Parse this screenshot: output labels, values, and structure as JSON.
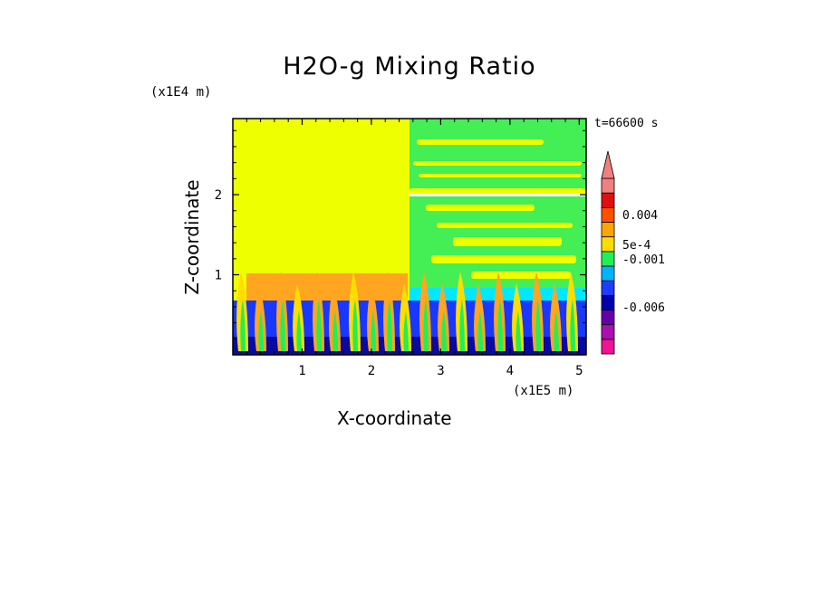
{
  "chart_data": {
    "type": "heatmap",
    "title": "H2O-g Mixing Ratio",
    "xlabel": "X-coordinate",
    "ylabel": "Z-coordinate",
    "x_unit": "(x1E5 m)",
    "y_unit": "(x1E4 m)",
    "time_label": "t=66600 s",
    "xlim": [
      0,
      5.1
    ],
    "ylim": [
      0,
      2.95
    ],
    "x_ticks": [
      1,
      2,
      3,
      4,
      5
    ],
    "y_ticks": [
      1,
      2
    ],
    "colorbar": {
      "labels": [
        "0.004",
        "5e-4",
        "-0.001",
        "-0.006"
      ],
      "colors": [
        "#ee1493",
        "#aa10b0",
        "#6600aa",
        "#0000aa",
        "#1e3cff",
        "#00b4ff",
        "#22ee55",
        "#ffdd00",
        "#ffa500",
        "#ff5000",
        "#e01010",
        "#f08080"
      ],
      "extend": "max"
    },
    "field_colors": {
      "background_upper_left": "#eeff00",
      "background_upper_right": "#44ee55",
      "orange": "#ffa520",
      "cyan": "#00e8ff",
      "blue": "#1838ff",
      "dark_blue": "#0a0aa0"
    }
  }
}
